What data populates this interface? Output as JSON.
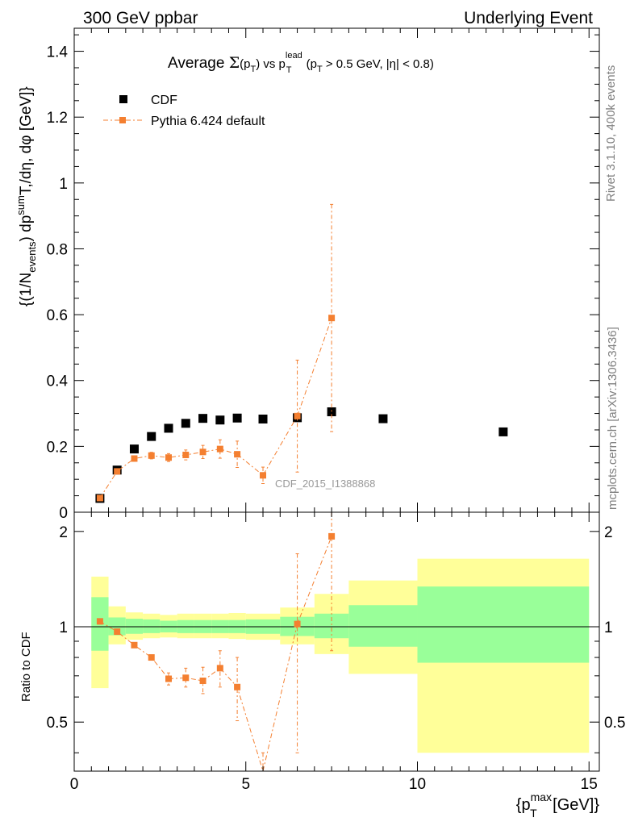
{
  "header": {
    "left": "300 GeV ppbar",
    "right": "Underlying Event"
  },
  "side_labels": {
    "rivet": "Rivet 3.1.10,  400k events",
    "mcplots": "mcplots.cern.ch [arXiv:1306.3436]"
  },
  "colors": {
    "cdf": "#000000",
    "pythia": "#f47f30",
    "band_inner": "#99ff99",
    "band_outer": "#ffff99",
    "watermark": "#999999",
    "side_text": "#808080"
  },
  "chart_data": [
    {
      "type": "scatter",
      "title": "Average Σ(p_T) vs p_T^lead (p_T > 0.5 GeV, |η| < 0.8)",
      "ylabel": "{(1/N_events) dp^sum T,/dη, dφ [GeV]}",
      "watermark": "CDF_2015_I1388868",
      "xlim": [
        0,
        15.3
      ],
      "ylim": [
        0,
        1.47
      ],
      "yticks": [
        0,
        0.2,
        0.4,
        0.6,
        0.8,
        1,
        1.2,
        1.4
      ],
      "ytick_labels": [
        "0",
        "0.2",
        "0.4",
        "0.6",
        "0.8",
        "1",
        "1.2",
        "1.4"
      ],
      "legend_position": "top-left",
      "series": [
        {
          "name": "CDF",
          "marker": "square",
          "x": [
            0.75,
            1.25,
            1.75,
            2.25,
            2.75,
            3.25,
            3.75,
            4.25,
            4.75,
            5.5,
            6.5,
            7.5,
            9.0,
            12.5
          ],
          "y": [
            0.042,
            0.128,
            0.192,
            0.23,
            0.255,
            0.27,
            0.285,
            0.28,
            0.286,
            0.283,
            0.287,
            0.305,
            0.284,
            0.244
          ],
          "xerr": [
            0.25,
            0.25,
            0.25,
            0.25,
            0.25,
            0.25,
            0.25,
            0.25,
            0.25,
            0.5,
            0.5,
            0.5,
            1.0,
            2.5
          ]
        },
        {
          "name": "Pythia 6.424 default",
          "marker": "square-line",
          "x": [
            0.75,
            1.25,
            1.75,
            2.25,
            2.75,
            3.25,
            3.75,
            4.25,
            4.75,
            5.5,
            6.5,
            7.5
          ],
          "y": [
            0.043,
            0.124,
            0.163,
            0.172,
            0.166,
            0.174,
            0.183,
            0.192,
            0.176,
            0.112,
            0.292,
            0.59
          ],
          "yerr": [
            0.004,
            0.008,
            0.008,
            0.01,
            0.012,
            0.015,
            0.02,
            0.028,
            0.04,
            0.025,
            0.17,
            0.345
          ]
        }
      ]
    },
    {
      "type": "scatter",
      "ylabel": "Ratio to CDF",
      "xlabel": "{p_T^max [GeV]}",
      "xlim": [
        0,
        15.3
      ],
      "ylim": [
        0.35,
        2.3
      ],
      "xticks": [
        0,
        5,
        10,
        15
      ],
      "xtick_labels": [
        "0",
        "5",
        "10",
        "15"
      ],
      "yticks": [
        0.5,
        1,
        2
      ],
      "ytick_labels": [
        "0.5",
        "1",
        "2"
      ],
      "bands": {
        "edges": [
          0.5,
          1.0,
          1.5,
          2.0,
          2.5,
          3.0,
          3.5,
          4.0,
          4.5,
          5.0,
          6.0,
          7.0,
          8.0,
          10.0,
          15.0
        ],
        "inner_lo": [
          0.84,
          0.94,
          0.95,
          0.955,
          0.96,
          0.955,
          0.955,
          0.955,
          0.955,
          0.95,
          0.935,
          0.92,
          0.865,
          0.77
        ],
        "inner_hi": [
          1.24,
          1.07,
          1.06,
          1.055,
          1.045,
          1.05,
          1.05,
          1.05,
          1.05,
          1.055,
          1.075,
          1.1,
          1.17,
          1.34
        ],
        "outer_lo": [
          0.64,
          0.88,
          0.91,
          0.92,
          0.925,
          0.92,
          0.92,
          0.92,
          0.915,
          0.91,
          0.88,
          0.82,
          0.71,
          0.4
        ],
        "outer_hi": [
          1.44,
          1.16,
          1.11,
          1.1,
          1.09,
          1.1,
          1.1,
          1.1,
          1.105,
          1.1,
          1.15,
          1.27,
          1.4,
          1.64
        ]
      },
      "series": [
        {
          "name": "Pythia 6.424 default",
          "x": [
            0.75,
            1.25,
            1.75,
            2.25,
            2.75,
            3.25,
            3.75,
            4.25,
            4.75,
            5.5,
            6.5,
            7.5
          ],
          "y": [
            1.04,
            0.965,
            0.875,
            0.8,
            0.685,
            0.69,
            0.675,
            0.74,
            0.645,
            0.35,
            1.02,
            1.93
          ],
          "ylo": [
            1.02,
            0.955,
            0.865,
            0.785,
            0.655,
            0.645,
            0.615,
            0.645,
            0.505,
            0.3,
            0.4,
            0.84
          ],
          "yhi": [
            1.06,
            0.975,
            0.885,
            0.815,
            0.715,
            0.74,
            0.745,
            0.84,
            0.8,
            0.4,
            1.7,
            2.5
          ]
        }
      ]
    }
  ]
}
